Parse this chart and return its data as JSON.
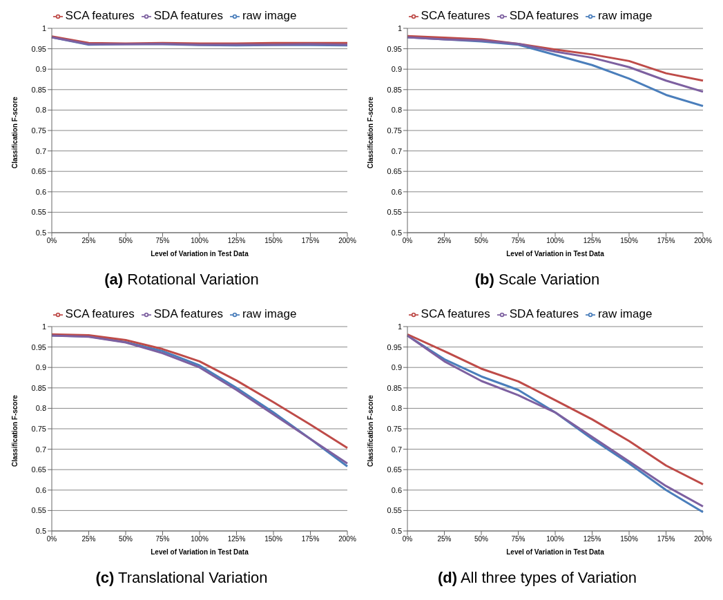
{
  "chart_data": [
    {
      "type": "line",
      "title": "(a) Rotational Variation",
      "xlabel": "Level of Variation in Test Data",
      "ylabel": "Classification F-score",
      "categories": [
        "0%",
        "25%",
        "50%",
        "75%",
        "100%",
        "125%",
        "150%",
        "175%",
        "200%"
      ],
      "ylim": [
        0.5,
        1
      ],
      "yticks": [
        0.5,
        0.55,
        0.6,
        0.65,
        0.7,
        0.75,
        0.8,
        0.85,
        0.9,
        0.95,
        1
      ],
      "grid": "y",
      "legend": "top",
      "marker": "none",
      "series": [
        {
          "name": "raw image",
          "color": "#4a7ebb",
          "values": [
            0.978,
            0.96,
            0.961,
            0.961,
            0.959,
            0.958,
            0.959,
            0.959,
            0.958
          ]
        },
        {
          "name": "SCA features",
          "color": "#be4b48",
          "values": [
            0.98,
            0.964,
            0.963,
            0.964,
            0.963,
            0.963,
            0.964,
            0.964,
            0.964
          ]
        },
        {
          "name": "SDA features",
          "color": "#7d60a0",
          "values": [
            0.978,
            0.961,
            0.961,
            0.962,
            0.96,
            0.96,
            0.96,
            0.961,
            0.96
          ]
        }
      ]
    },
    {
      "type": "line",
      "title": "(b) Scale Variation",
      "xlabel": "Level of Variation in Test Data",
      "ylabel": "Classification F-score",
      "categories": [
        "0%",
        "25%",
        "50%",
        "75%",
        "100%",
        "125%",
        "150%",
        "175%",
        "200%"
      ],
      "ylim": [
        0.5,
        1
      ],
      "yticks": [
        0.5,
        0.55,
        0.6,
        0.65,
        0.7,
        0.75,
        0.8,
        0.85,
        0.9,
        0.95,
        1
      ],
      "grid": "y",
      "legend": "top",
      "marker": "none",
      "series": [
        {
          "name": "raw image",
          "color": "#4a7ebb",
          "values": [
            0.978,
            0.973,
            0.968,
            0.96,
            0.935,
            0.91,
            0.877,
            0.837,
            0.81
          ]
        },
        {
          "name": "SCA features",
          "color": "#be4b48",
          "values": [
            0.981,
            0.977,
            0.973,
            0.962,
            0.948,
            0.936,
            0.92,
            0.89,
            0.872
          ]
        },
        {
          "name": "SDA features",
          "color": "#7d60a0",
          "values": [
            0.978,
            0.973,
            0.97,
            0.962,
            0.943,
            0.928,
            0.905,
            0.872,
            0.845
          ]
        }
      ]
    },
    {
      "type": "line",
      "title": "(c) Translational Variation",
      "xlabel": "Level of Variation in Test Data",
      "ylabel": "Classification F-score",
      "categories": [
        "0%",
        "25%",
        "50%",
        "75%",
        "100%",
        "125%",
        "150%",
        "175%",
        "200%"
      ],
      "ylim": [
        0.5,
        1
      ],
      "yticks": [
        0.5,
        0.55,
        0.6,
        0.65,
        0.7,
        0.75,
        0.8,
        0.85,
        0.9,
        0.95,
        1
      ],
      "grid": "y",
      "legend": "top",
      "marker": "none",
      "series": [
        {
          "name": "raw image",
          "color": "#4a7ebb",
          "values": [
            0.978,
            0.976,
            0.962,
            0.94,
            0.905,
            0.85,
            0.79,
            0.725,
            0.658
          ]
        },
        {
          "name": "SCA features",
          "color": "#be4b48",
          "values": [
            0.981,
            0.979,
            0.967,
            0.945,
            0.915,
            0.868,
            0.815,
            0.76,
            0.703
          ]
        },
        {
          "name": "SDA features",
          "color": "#7d60a0",
          "values": [
            0.978,
            0.975,
            0.961,
            0.935,
            0.9,
            0.845,
            0.785,
            0.725,
            0.665
          ]
        }
      ]
    },
    {
      "type": "line",
      "title": "(d) All three types of Variation",
      "xlabel": "Level of Variation in Test Data",
      "ylabel": "Classification F-score",
      "categories": [
        "0%",
        "25%",
        "50%",
        "75%",
        "100%",
        "125%",
        "150%",
        "175%",
        "200%"
      ],
      "ylim": [
        0.5,
        1
      ],
      "yticks": [
        0.5,
        0.55,
        0.6,
        0.65,
        0.7,
        0.75,
        0.8,
        0.85,
        0.9,
        0.95,
        1
      ],
      "grid": "y",
      "legend": "top",
      "marker": "none",
      "series": [
        {
          "name": "raw image",
          "color": "#4a7ebb",
          "values": [
            0.978,
            0.92,
            0.878,
            0.845,
            0.79,
            0.725,
            0.665,
            0.6,
            0.546
          ]
        },
        {
          "name": "SCA features",
          "color": "#be4b48",
          "values": [
            0.981,
            0.94,
            0.897,
            0.866,
            0.82,
            0.773,
            0.72,
            0.66,
            0.614
          ]
        },
        {
          "name": "SDA features",
          "color": "#7d60a0",
          "values": [
            0.978,
            0.915,
            0.867,
            0.832,
            0.79,
            0.73,
            0.67,
            0.61,
            0.56
          ]
        }
      ]
    }
  ]
}
